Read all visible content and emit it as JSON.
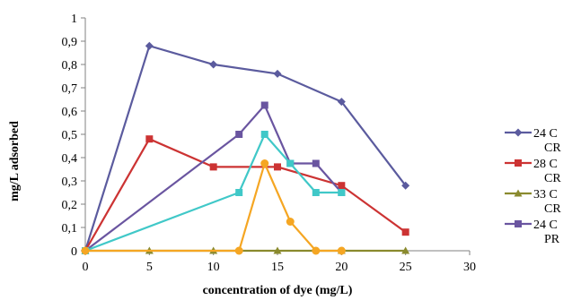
{
  "chart_data": {
    "type": "line",
    "title": "",
    "xlabel": "concentration of dye (mg/L)",
    "ylabel": "mg/L adsorbed",
    "xlim": [
      0,
      30
    ],
    "ylim": [
      0,
      1
    ],
    "x_ticks": [
      "0",
      "5",
      "10",
      "15",
      "20",
      "25",
      "30"
    ],
    "y_ticks": [
      "0",
      "0,1",
      "0,2",
      "0,3",
      "0,4",
      "0,5",
      "0,6",
      "0,7",
      "0,8",
      "0,9",
      "1"
    ],
    "grid": false,
    "legend_position": "right",
    "series": [
      {
        "name": "24 C CR",
        "legend_lines": [
          "24 C",
          "CR"
        ],
        "color": "#5B5B9E",
        "marker": "diamond",
        "points": [
          [
            0,
            0
          ],
          [
            5,
            0.88
          ],
          [
            10,
            0.8
          ],
          [
            15,
            0.76
          ],
          [
            20,
            0.64
          ],
          [
            25,
            0.28
          ]
        ]
      },
      {
        "name": "28 C CR",
        "legend_lines": [
          "28 C",
          "CR"
        ],
        "color": "#CC3333",
        "marker": "square",
        "points": [
          [
            0,
            0
          ],
          [
            5,
            0.48
          ],
          [
            10,
            0.36
          ],
          [
            15,
            0.36
          ],
          [
            20,
            0.28
          ],
          [
            25,
            0.08
          ]
        ]
      },
      {
        "name": "33 C CR",
        "legend_lines": [
          "33 C",
          "CR"
        ],
        "color": "#8A8A2E",
        "marker": "triangle",
        "points": [
          [
            0,
            0
          ],
          [
            5,
            0
          ],
          [
            10,
            0
          ],
          [
            15,
            0
          ],
          [
            20,
            0
          ],
          [
            25,
            0
          ]
        ]
      },
      {
        "name": "24 C PR",
        "legend_lines": [
          "24 C",
          "PR"
        ],
        "color": "#6A55A0",
        "marker": "square",
        "points": [
          [
            0,
            0
          ],
          [
            12,
            0.5
          ],
          [
            14,
            0.625
          ],
          [
            16,
            0.375
          ],
          [
            18,
            0.375
          ],
          [
            20,
            0.25
          ]
        ]
      },
      {
        "name": "",
        "legend_lines": [],
        "color": "#40C8C8",
        "marker": "square",
        "points": [
          [
            0,
            0
          ],
          [
            12,
            0.25
          ],
          [
            14,
            0.5
          ],
          [
            16,
            0.375
          ],
          [
            18,
            0.25
          ],
          [
            20,
            0.25
          ]
        ]
      },
      {
        "name": "",
        "legend_lines": [],
        "color": "#F5A623",
        "marker": "circle",
        "points": [
          [
            0,
            0
          ],
          [
            12,
            0
          ],
          [
            14,
            0.375
          ],
          [
            16,
            0.125
          ],
          [
            18,
            0
          ],
          [
            20,
            0
          ]
        ]
      }
    ]
  }
}
